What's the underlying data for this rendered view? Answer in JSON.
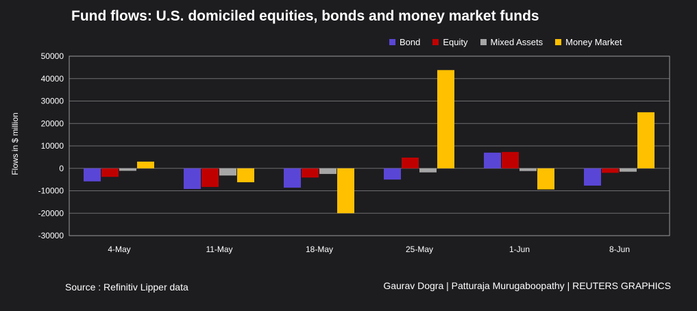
{
  "colors": {
    "background": "#1d1d20",
    "gridline": "#6e6e72",
    "axis": "#9a9a9e",
    "text": "#ffffff"
  },
  "footer": {
    "source": "Source : Refinitiv Lipper data",
    "credits": "Gaurav Dogra | Patturaja Murugaboopathy | REUTERS GRAPHICS"
  },
  "chart_data": {
    "type": "bar",
    "title": "Fund flows: U.S. domiciled equities, bonds and money market funds",
    "xlabel": "",
    "ylabel": "Flows in $ million",
    "ylim": [
      -30000,
      50000
    ],
    "yticks": [
      50000,
      40000,
      30000,
      20000,
      10000,
      0,
      -10000,
      -20000,
      -30000
    ],
    "grid": true,
    "legend_position": "top-right",
    "categories": [
      "4-May",
      "11-May",
      "18-May",
      "25-May",
      "1-Jun",
      "8-Jun"
    ],
    "series": [
      {
        "name": "Bond",
        "color": "#5a46d6",
        "values": [
          -5800,
          -9200,
          -8600,
          -5000,
          7000,
          -7700
        ]
      },
      {
        "name": "Equity",
        "color": "#c00000",
        "values": [
          -3800,
          -8300,
          -4100,
          4800,
          7300,
          -2000
        ]
      },
      {
        "name": "Mixed Assets",
        "color": "#a6a6a6",
        "values": [
          -1100,
          -3200,
          -2500,
          -1800,
          -1200,
          -1500
        ]
      },
      {
        "name": "Money Market",
        "color": "#ffc000",
        "values": [
          3000,
          -6200,
          -20000,
          43800,
          -9400,
          25000
        ]
      }
    ]
  }
}
